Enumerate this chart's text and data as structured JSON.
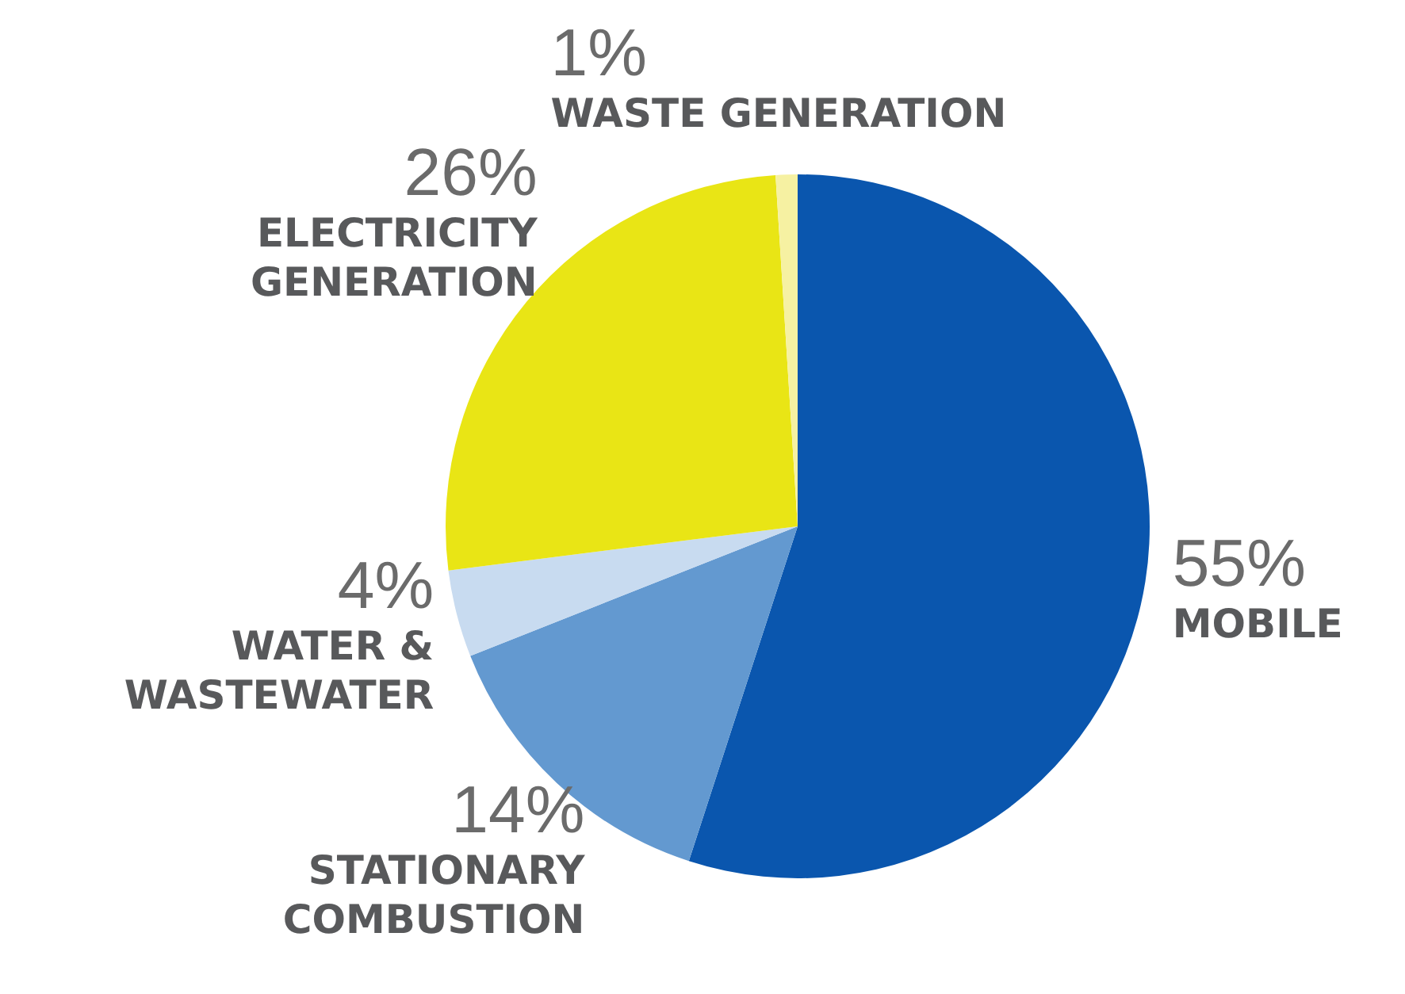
{
  "chart_data": {
    "type": "pie",
    "categories": [
      "MOBILE",
      "STATIONARY COMBUSTION",
      "WATER & WASTEWATER",
      "ELECTRICITY GENERATION",
      "WASTE GENERATION"
    ],
    "values": [
      55,
      14,
      4,
      26,
      1
    ],
    "colors": [
      "#0a56ae",
      "#6399d0",
      "#c8dbf0",
      "#e9e515",
      "#f6f1a2"
    ],
    "value_labels": [
      "55%",
      "14%",
      "4%",
      "26%",
      "1%"
    ],
    "legend": false
  }
}
